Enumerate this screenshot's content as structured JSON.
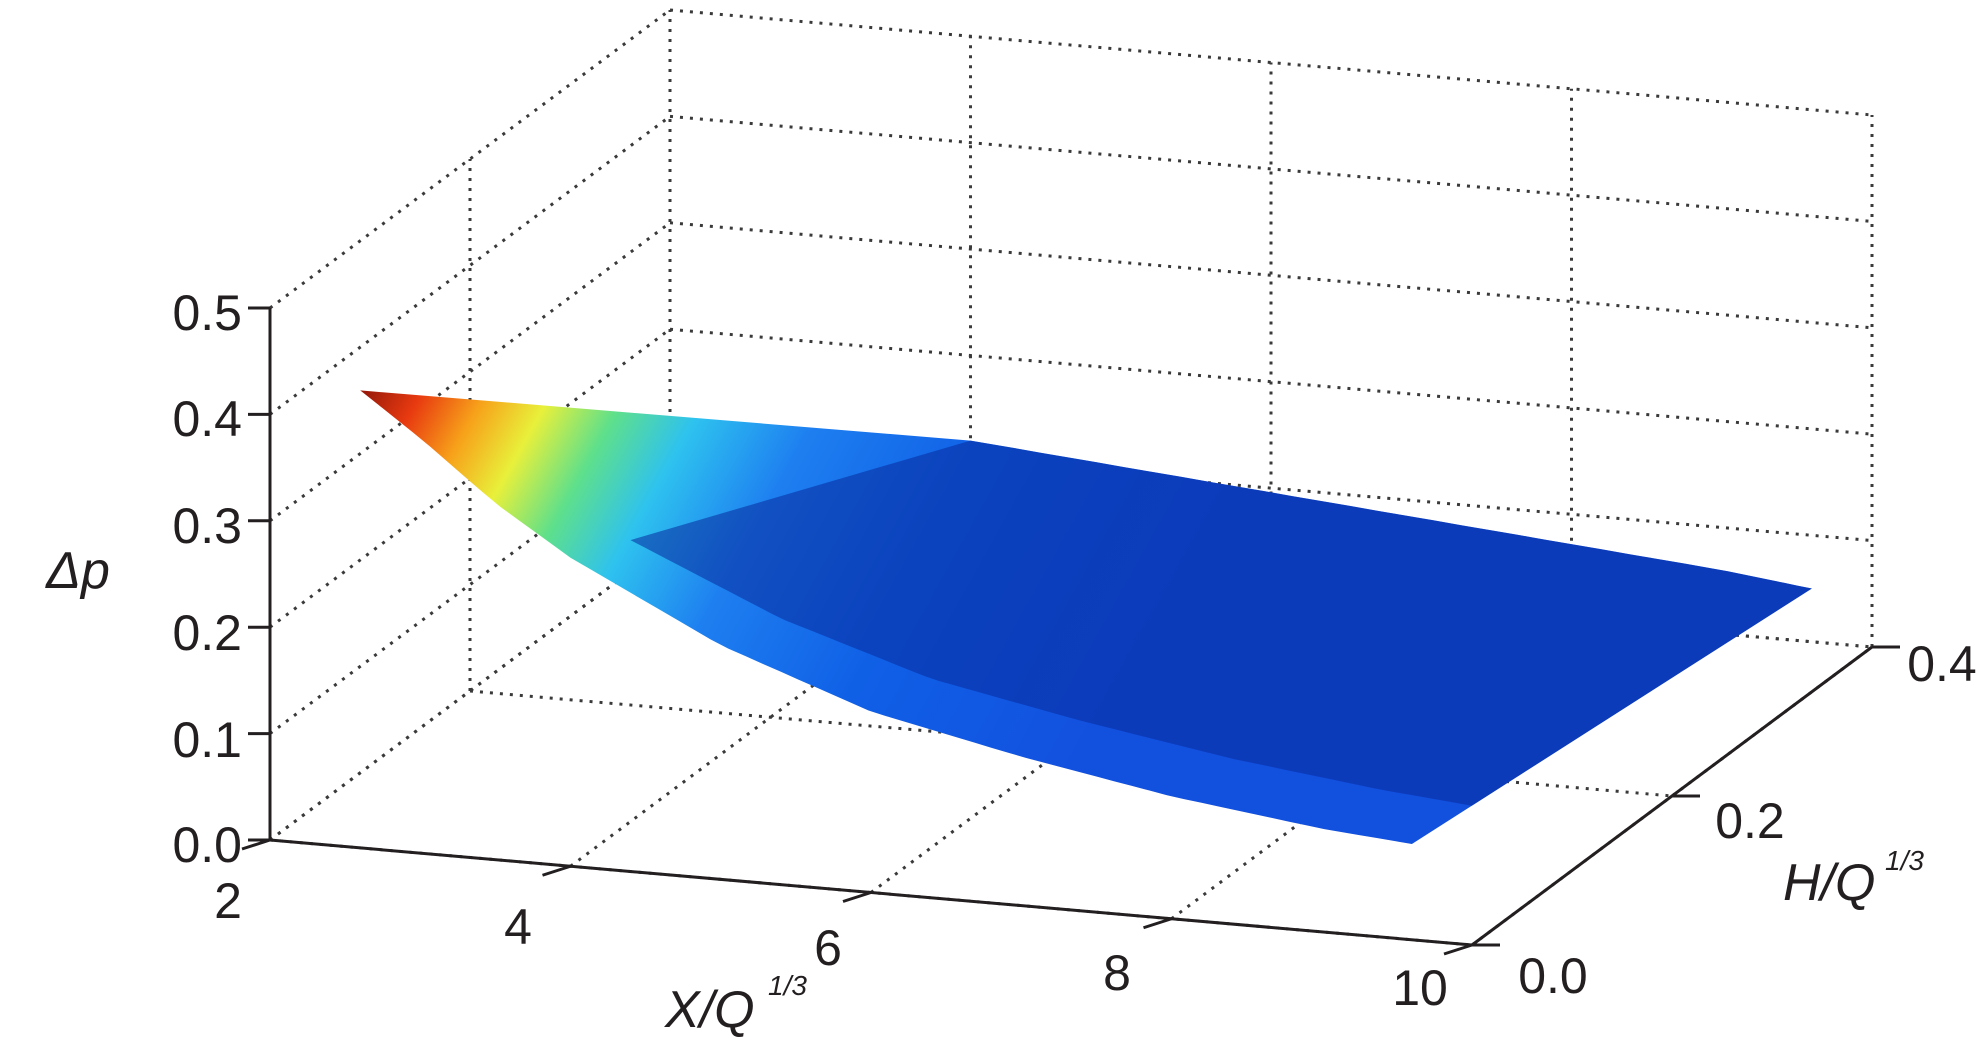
{
  "chart_data": {
    "type": "surface",
    "x_axis": {
      "label_main": "X/Q",
      "label_sup": "1/3",
      "range": [
        2,
        10
      ],
      "ticks": [
        "2",
        "4",
        "6",
        "8",
        "10"
      ]
    },
    "y_axis": {
      "label_main": "H/Q",
      "label_sup": "1/3",
      "range": [
        0.0,
        0.4
      ],
      "ticks": [
        "0.0",
        "0.2",
        "0.4"
      ]
    },
    "z_axis": {
      "label": "Δp",
      "range": [
        0.0,
        0.5
      ],
      "ticks": [
        "0.0",
        "0.1",
        "0.2",
        "0.3",
        "0.4",
        "0.5"
      ]
    },
    "grid": true,
    "colormap": "jet",
    "surface": {
      "H_values": [
        0.0,
        0.4
      ],
      "curve_H0": {
        "x": [
          2.6,
          3.0,
          3.5,
          4.0,
          5.0,
          6.0,
          7.0,
          8.0,
          9.0,
          9.6
        ],
        "z": [
          0.43,
          0.39,
          0.335,
          0.29,
          0.22,
          0.17,
          0.14,
          0.115,
          0.097,
          0.09
        ]
      },
      "curve_H04": {
        "x": [
          4.0,
          5.0,
          6.0,
          7.0,
          8.0,
          9.0,
          9.6
        ],
        "z": [
          0.12,
          0.108,
          0.096,
          0.084,
          0.072,
          0.06,
          0.05
        ]
      }
    }
  }
}
